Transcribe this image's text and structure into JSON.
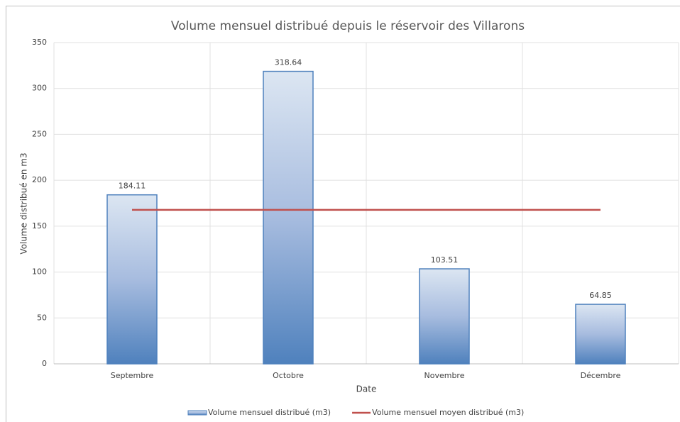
{
  "chart_data": {
    "type": "bar",
    "title": "Volume mensuel distribué depuis le réservoir des Villarons",
    "x_label": "Date",
    "y_label": "Volume distribué en m3",
    "categories": [
      "Septembre",
      "Octobre",
      "Novembre",
      "Décembre"
    ],
    "series": [
      {
        "name": "Volume mensuel distribué (m3)",
        "type": "bar",
        "color": "#4f81bd",
        "values": [
          184.11,
          318.64,
          103.51,
          64.85
        ]
      },
      {
        "name": "Volume mensuel moyen distribué (m3)",
        "type": "line",
        "color": "#c0504d",
        "values": [
          167.78,
          167.78,
          167.78,
          167.78
        ]
      }
    ],
    "data_labels": [
      true,
      false
    ],
    "ylim": [
      0,
      350
    ],
    "yticks": [
      0,
      50,
      100,
      150,
      200,
      250,
      300,
      350
    ],
    "grid": true,
    "legend": "bottom"
  }
}
